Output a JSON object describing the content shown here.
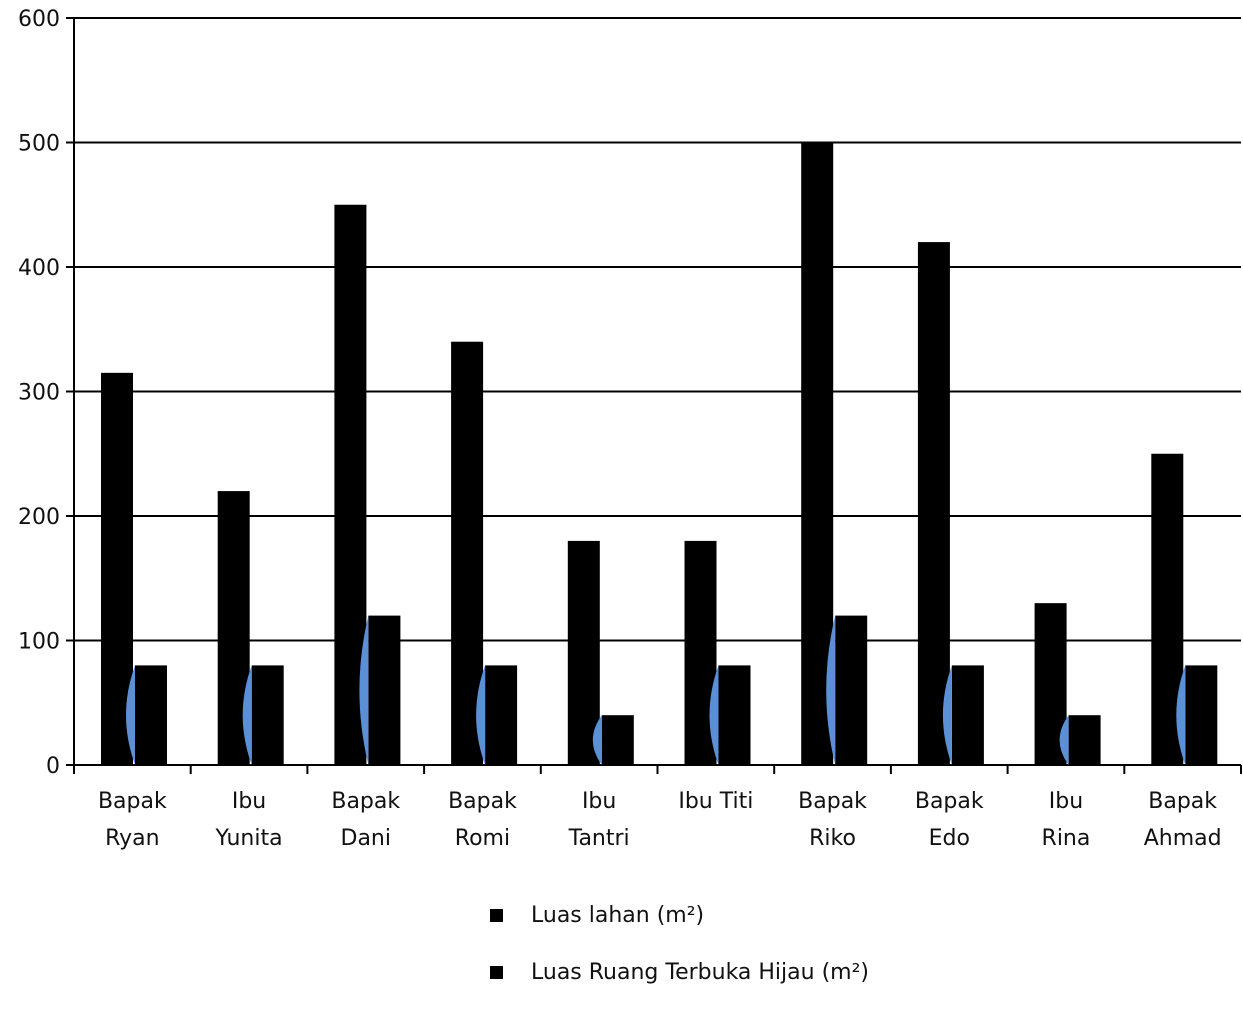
{
  "chart_data": {
    "type": "bar",
    "categories": [
      [
        "Bapak",
        "Ryan"
      ],
      [
        "Ibu",
        "Yunita"
      ],
      [
        "Bapak",
        "Dani"
      ],
      [
        "Bapak",
        "Romi"
      ],
      [
        "Ibu",
        "Tantri"
      ],
      [
        "Ibu Titi"
      ],
      [
        "Bapak",
        "Riko"
      ],
      [
        "Bapak",
        "Edo"
      ],
      [
        "Ibu",
        "Rina"
      ],
      [
        "Bapak",
        "Ahmad"
      ]
    ],
    "series": [
      {
        "name": "Luas lahan (m²)",
        "values": [
          315,
          220,
          450,
          340,
          180,
          180,
          500,
          420,
          130,
          250
        ]
      },
      {
        "name": "Luas Ruang Terbuka Hijau (m²)",
        "values": [
          80,
          80,
          120,
          80,
          40,
          80,
          120,
          80,
          40,
          80
        ]
      }
    ],
    "ylim": [
      0,
      600
    ],
    "yticks": [
      0,
      100,
      200,
      300,
      400,
      500,
      600
    ],
    "grid": true,
    "legend_position": "bottom",
    "colors": {
      "bar": "#000000",
      "accent": "#5b8fd6",
      "grid": "#000000"
    }
  },
  "legend": {
    "items": [
      "Luas lahan (m²)",
      "Luas Ruang Terbuka Hijau (m²)"
    ]
  }
}
